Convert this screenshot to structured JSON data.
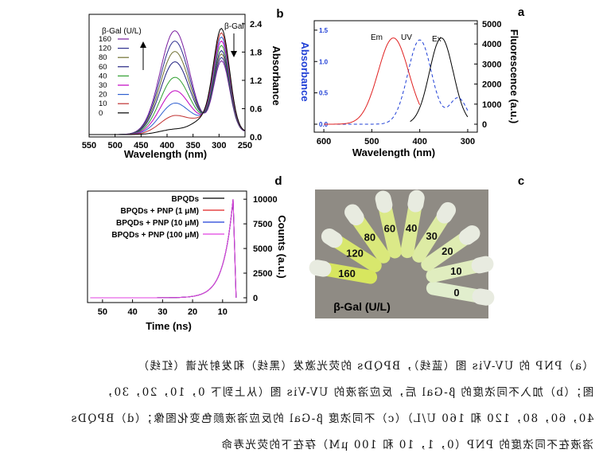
{
  "panels": {
    "a": {
      "label": "a",
      "xlabel": "Wavelength (nm)",
      "ylabel_left": "Absorbance",
      "ylabel_right": "Fluorescence (a.u.)",
      "x_ticks": [
        "300",
        "400",
        "500",
        "600"
      ],
      "y_ticks_right": [
        "0",
        "1000",
        "2000",
        "3000",
        "4000",
        "5000"
      ],
      "y_ticks_left": [
        "0.0",
        "0.5",
        "1.0",
        "1.5"
      ],
      "legend": [
        "Ex",
        "UV",
        "Em"
      ],
      "colors": {
        "Ex": "#000000",
        "UV": "#1f3fd6",
        "Em": "#e02020",
        "ylabel_left": "#1f3fd6"
      }
    },
    "b": {
      "label": "b",
      "xlabel": "Wavelength (nm)",
      "ylabel": "Absorbance",
      "x_ticks": [
        "250",
        "300",
        "350",
        "400",
        "450",
        "500",
        "550"
      ],
      "y_ticks": [
        "0.0",
        "0.6",
        "1.2",
        "1.8",
        "2.4"
      ],
      "legend_title": "β-Gal (U/L)",
      "annotation": "β-Gal",
      "legend": [
        "160",
        "120",
        "80",
        "60",
        "40",
        "30",
        "20",
        "10",
        "0"
      ],
      "colors": [
        "#7a1fa0",
        "#303090",
        "#707030",
        "#202080",
        "#30a030",
        "#c000c0",
        "#3060d0",
        "#c03030",
        "#000000"
      ]
    },
    "c": {
      "label": "c",
      "tube_labels": [
        "0",
        "10",
        "20",
        "30",
        "40",
        "60",
        "80",
        "120",
        "160"
      ],
      "caption": "β-Gal (U/L)"
    },
    "d": {
      "label": "d",
      "xlabel": "Time (ns)",
      "ylabel": "Counts (a.u.)",
      "x_ticks": [
        "10",
        "20",
        "30",
        "40",
        "50"
      ],
      "y_ticks": [
        "0",
        "2500",
        "5000",
        "7500",
        "10000"
      ],
      "legend": [
        "BPQDs",
        "BPQDs + PNP (1 μM)",
        "BPQDs + PNP (10 μM)",
        "BPQDs + PNP (100 μM)"
      ],
      "colors": [
        "#000000",
        "#e02020",
        "#1f3fd6",
        "#e040e0"
      ]
    }
  },
  "caption": {
    "lines": [
      "（a）PNP 的 UV-Vis 图（蓝线），BPQDs 的荧光激发（黑线）和发射光谱（红线）",
      "图；（b）加入不同浓度的 β-Gal 后，反应溶液的 UV-Vis 图（从上到下 0，10，20，30，",
      "40，60，80，120 和 160 U/L）（c）不同浓度 β-Gal 的反应溶液颜色变化图像；（d）BPQDs",
      "溶液在不同浓度的 PNP（0，1，10 和 100 μM）存在下的荧光寿命"
    ]
  }
}
